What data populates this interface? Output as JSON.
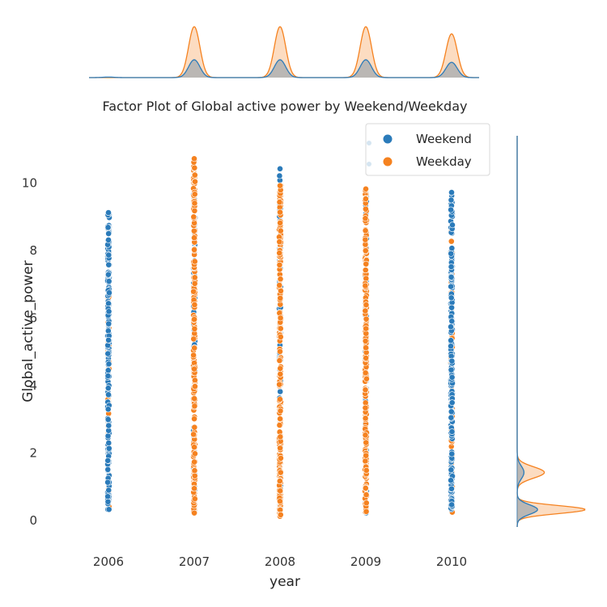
{
  "chart_data": {
    "type": "scatter",
    "title": "Factor Plot of Global active power by Weekend/Weekday",
    "xlabel": "year",
    "ylabel": "Global_active_power",
    "x_categories": [
      "2006",
      "2007",
      "2008",
      "2009",
      "2010"
    ],
    "y_ticks": [
      0,
      2,
      4,
      6,
      8,
      10
    ],
    "ylim": [
      -0.8,
      11.4
    ],
    "grid": false,
    "legend": {
      "placement": "top-right",
      "entries": [
        "Weekend",
        "Weekday"
      ]
    },
    "series": [
      {
        "name": "Weekend",
        "color": "#2b7bba",
        "ranges": [
          {
            "x": "2006",
            "min": 0.3,
            "max": 9.1
          },
          {
            "x": "2007",
            "min": 0.2,
            "max": 9.7
          },
          {
            "x": "2008",
            "min": 0.2,
            "max": 10.4
          },
          {
            "x": "2009",
            "min": 0.2,
            "max": 9.7
          },
          {
            "x": "2010",
            "min": 0.3,
            "max": 9.7
          }
        ]
      },
      {
        "name": "Weekday",
        "color": "#f58220",
        "ranges": [
          {
            "x": "2006",
            "min": 0.3,
            "max": 7.3
          },
          {
            "x": "2007",
            "min": 0.2,
            "max": 10.7
          },
          {
            "x": "2008",
            "min": 0.1,
            "max": 9.9
          },
          {
            "x": "2009",
            "min": 0.2,
            "max": 9.8
          },
          {
            "x": "2010",
            "min": 0.2,
            "max": 8.6
          }
        ]
      }
    ],
    "top_marginal": {
      "type": "kde",
      "peaks": [
        {
          "x": "2006",
          "weekend": 0.01,
          "weekday": 0.0
        },
        {
          "x": "2007",
          "weekend": 0.35,
          "weekday": 1.0
        },
        {
          "x": "2008",
          "weekend": 0.35,
          "weekday": 1.0
        },
        {
          "x": "2009",
          "weekend": 0.35,
          "weekday": 1.0
        },
        {
          "x": "2010",
          "weekend": 0.3,
          "weekday": 0.86
        }
      ]
    },
    "right_marginal": {
      "type": "kde",
      "weekday_peaks": [
        {
          "y": 0.3,
          "density": 1.0
        },
        {
          "y": 1.4,
          "density": 0.4
        }
      ],
      "weekend_peaks": [
        {
          "y": 0.3,
          "density": 0.3
        },
        {
          "y": 1.4,
          "density": 0.1
        }
      ]
    }
  }
}
